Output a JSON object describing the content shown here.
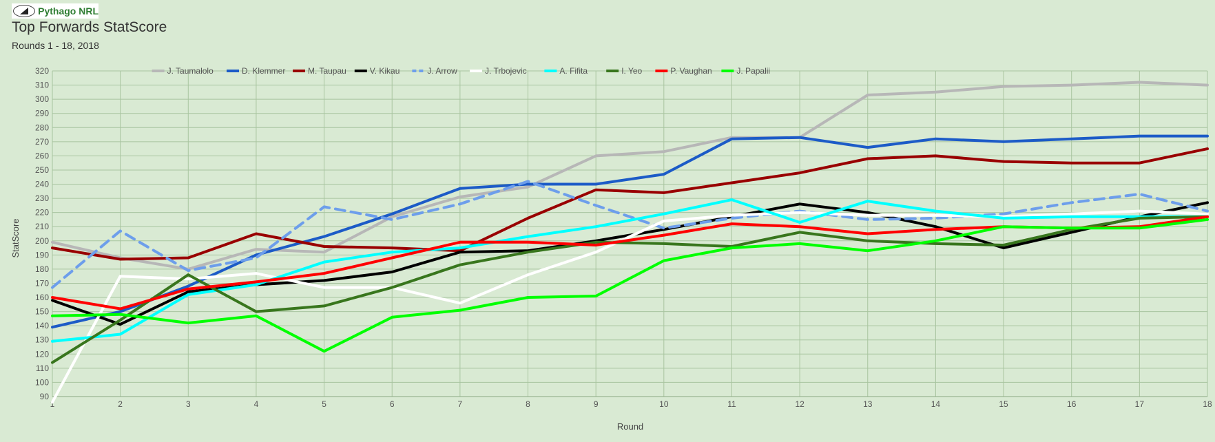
{
  "header": {
    "logo_text": "Pythago NRL",
    "title": "Top Forwards StatScore",
    "subtitle": "Rounds 1 - 18, 2018"
  },
  "chart_data": {
    "type": "line",
    "xlabel": "Round",
    "ylabel": "StatScore",
    "ylim": [
      90,
      320
    ],
    "ytick_step": 10,
    "grid": true,
    "legend_position": "top",
    "categories": [
      "1",
      "2",
      "3",
      "4",
      "5",
      "6",
      "7",
      "8",
      "9",
      "10",
      "11",
      "12",
      "13",
      "14",
      "15",
      "16",
      "17",
      "18"
    ],
    "series": [
      {
        "name": "J. Taumalolo",
        "color": "#b7b7b7",
        "dashed": false,
        "values": [
          199,
          188,
          180,
          194,
          192,
          217,
          231,
          238,
          260,
          263,
          273,
          273,
          303,
          305,
          309,
          310,
          312,
          310
        ]
      },
      {
        "name": "D. Klemmer",
        "color": "#1c5bc7",
        "dashed": false,
        "values": [
          139,
          150,
          168,
          190,
          203,
          219,
          237,
          240,
          240,
          247,
          272,
          273,
          266,
          272,
          270,
          272,
          274,
          274
        ]
      },
      {
        "name": "M. Taupau",
        "color": "#990000",
        "dashed": false,
        "values": [
          195,
          187,
          188,
          205,
          196,
          195,
          193,
          216,
          236,
          234,
          241,
          248,
          258,
          260,
          256,
          255,
          255,
          265
        ]
      },
      {
        "name": "V. Kikau",
        "color": "#000000",
        "dashed": false,
        "values": [
          158,
          141,
          164,
          169,
          172,
          178,
          192,
          193,
          200,
          208,
          217,
          226,
          220,
          210,
          195,
          206,
          217,
          227
        ]
      },
      {
        "name": "J. Arrow",
        "color": "#6d9eeb",
        "dashed": true,
        "values": [
          167,
          207,
          179,
          188,
          224,
          215,
          226,
          242,
          225,
          209,
          216,
          221,
          215,
          216,
          219,
          227,
          233,
          221
        ]
      },
      {
        "name": "J. Trbojevic",
        "color": "#ffffff",
        "dashed": false,
        "values": [
          86,
          175,
          173,
          177,
          167,
          167,
          156,
          176,
          192,
          214,
          218,
          220,
          218,
          218,
          217,
          219,
          221,
          219
        ]
      },
      {
        "name": "A. Fifita",
        "color": "#00ffff",
        "dashed": false,
        "values": [
          129,
          134,
          162,
          169,
          185,
          192,
          195,
          203,
          210,
          219,
          229,
          213,
          228,
          221,
          216,
          217,
          217,
          217
        ]
      },
      {
        "name": "I. Yeo",
        "color": "#38761d",
        "dashed": false,
        "values": [
          114,
          144,
          176,
          150,
          154,
          167,
          183,
          192,
          199,
          198,
          196,
          206,
          200,
          198,
          197,
          208,
          216,
          217
        ]
      },
      {
        "name": "P. Vaughan",
        "color": "#ff0000",
        "dashed": false,
        "values": [
          160,
          152,
          166,
          171,
          177,
          188,
          199,
          199,
          197,
          204,
          212,
          210,
          205,
          208,
          210,
          209,
          210,
          217
        ]
      },
      {
        "name": "J. Papalii",
        "color": "#00ff00",
        "dashed": false,
        "values": [
          147,
          148,
          142,
          147,
          122,
          146,
          151,
          160,
          161,
          186,
          195,
          198,
          193,
          200,
          210,
          209,
          209,
          215
        ]
      }
    ]
  }
}
